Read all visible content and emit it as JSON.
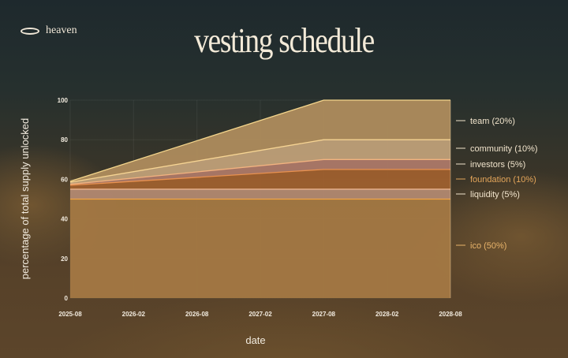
{
  "brand": {
    "name": "heaven"
  },
  "chart_data": {
    "type": "area",
    "stacked": true,
    "title": "vesting schedule",
    "xlabel": "date",
    "ylabel": "percentage of total supply unlocked",
    "x": [
      "2025-08",
      "2027-08",
      "2028-08"
    ],
    "x_ticks": [
      "2025-08",
      "2026-02",
      "2026-08",
      "2027-02",
      "2027-08",
      "2028-02",
      "2028-08"
    ],
    "y_ticks": [
      0,
      20,
      40,
      60,
      80,
      100
    ],
    "ylim": [
      0,
      100
    ],
    "grid": true,
    "legend_placement": "right",
    "series": [
      {
        "name": "ico (50%)",
        "values": [
          50,
          50,
          50
        ],
        "fill": "#a67a44",
        "line": "#f0a445",
        "label_color": "#e8b36a"
      },
      {
        "name": "liquidity (5%)",
        "values": [
          5,
          5,
          5
        ],
        "fill": "#b48a72",
        "line": "#eab48e",
        "label_color": "#f1e4cc"
      },
      {
        "name": "foundation (10%)",
        "values": [
          2,
          10,
          10
        ],
        "fill": "#a0612f",
        "line": "#e8914f",
        "label_color": "#e3a55a"
      },
      {
        "name": "investors (5%)",
        "values": [
          0.5,
          5,
          5
        ],
        "fill": "#ae7b69",
        "line": "#f2b27f",
        "label_color": "#f1e4cc"
      },
      {
        "name": "community (10%)",
        "values": [
          1,
          10,
          10
        ],
        "fill": "#c2a27a",
        "line": "#f6d493",
        "label_color": "#f1e4cc"
      },
      {
        "name": "team (20%)",
        "values": [
          0.5,
          20,
          20
        ],
        "fill": "#b08e5e",
        "line": "#f5d68c",
        "label_color": "#f1e4cc"
      }
    ]
  }
}
